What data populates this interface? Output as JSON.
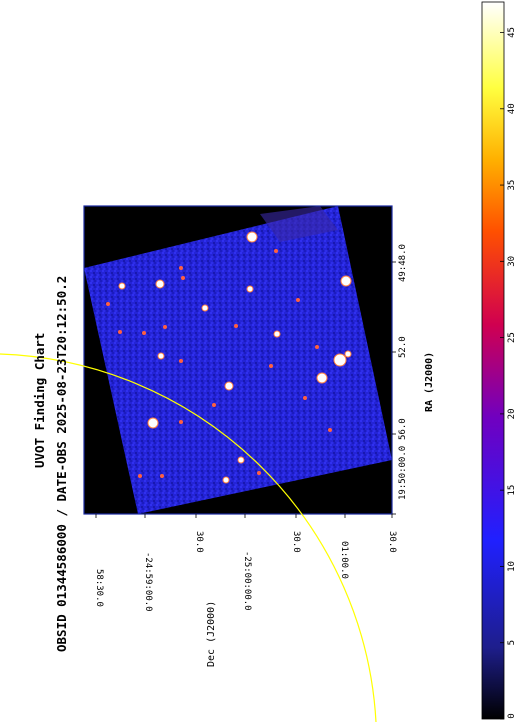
{
  "figure": {
    "title": "UVOT Finding Chart",
    "subtitle": "OBSID 01344586000 / DATE-OBS 2025-08-23T20:12:50.2",
    "ra_label": "RA (J2000)",
    "dec_label": "Dec (J2000)"
  },
  "ra_ticks": [
    "19:50:00.0",
    "56.0",
    "52.0",
    "49:48.0"
  ],
  "dec_ticks": [
    "58:30.0",
    "-24:59:00.0",
    "30.0",
    "-25:00:00.0",
    "30.0",
    "01:00.0",
    "30.0"
  ],
  "colorbar": {
    "ticks": [
      "0",
      "5",
      "10",
      "15",
      "20",
      "25",
      "30",
      "35",
      "40",
      "45"
    ],
    "min": 0,
    "max": 47,
    "colormap": [
      "#000000",
      "#1e1e8c",
      "#2020ff",
      "#7000c0",
      "#d00050",
      "#ff5000",
      "#ffb000",
      "#ffff40",
      "#ffffff"
    ]
  },
  "colors": {
    "image_background": "#2020d8",
    "frame_border": "#1a2aa0",
    "circle": "#ffff00",
    "source": "#ffffff"
  }
}
